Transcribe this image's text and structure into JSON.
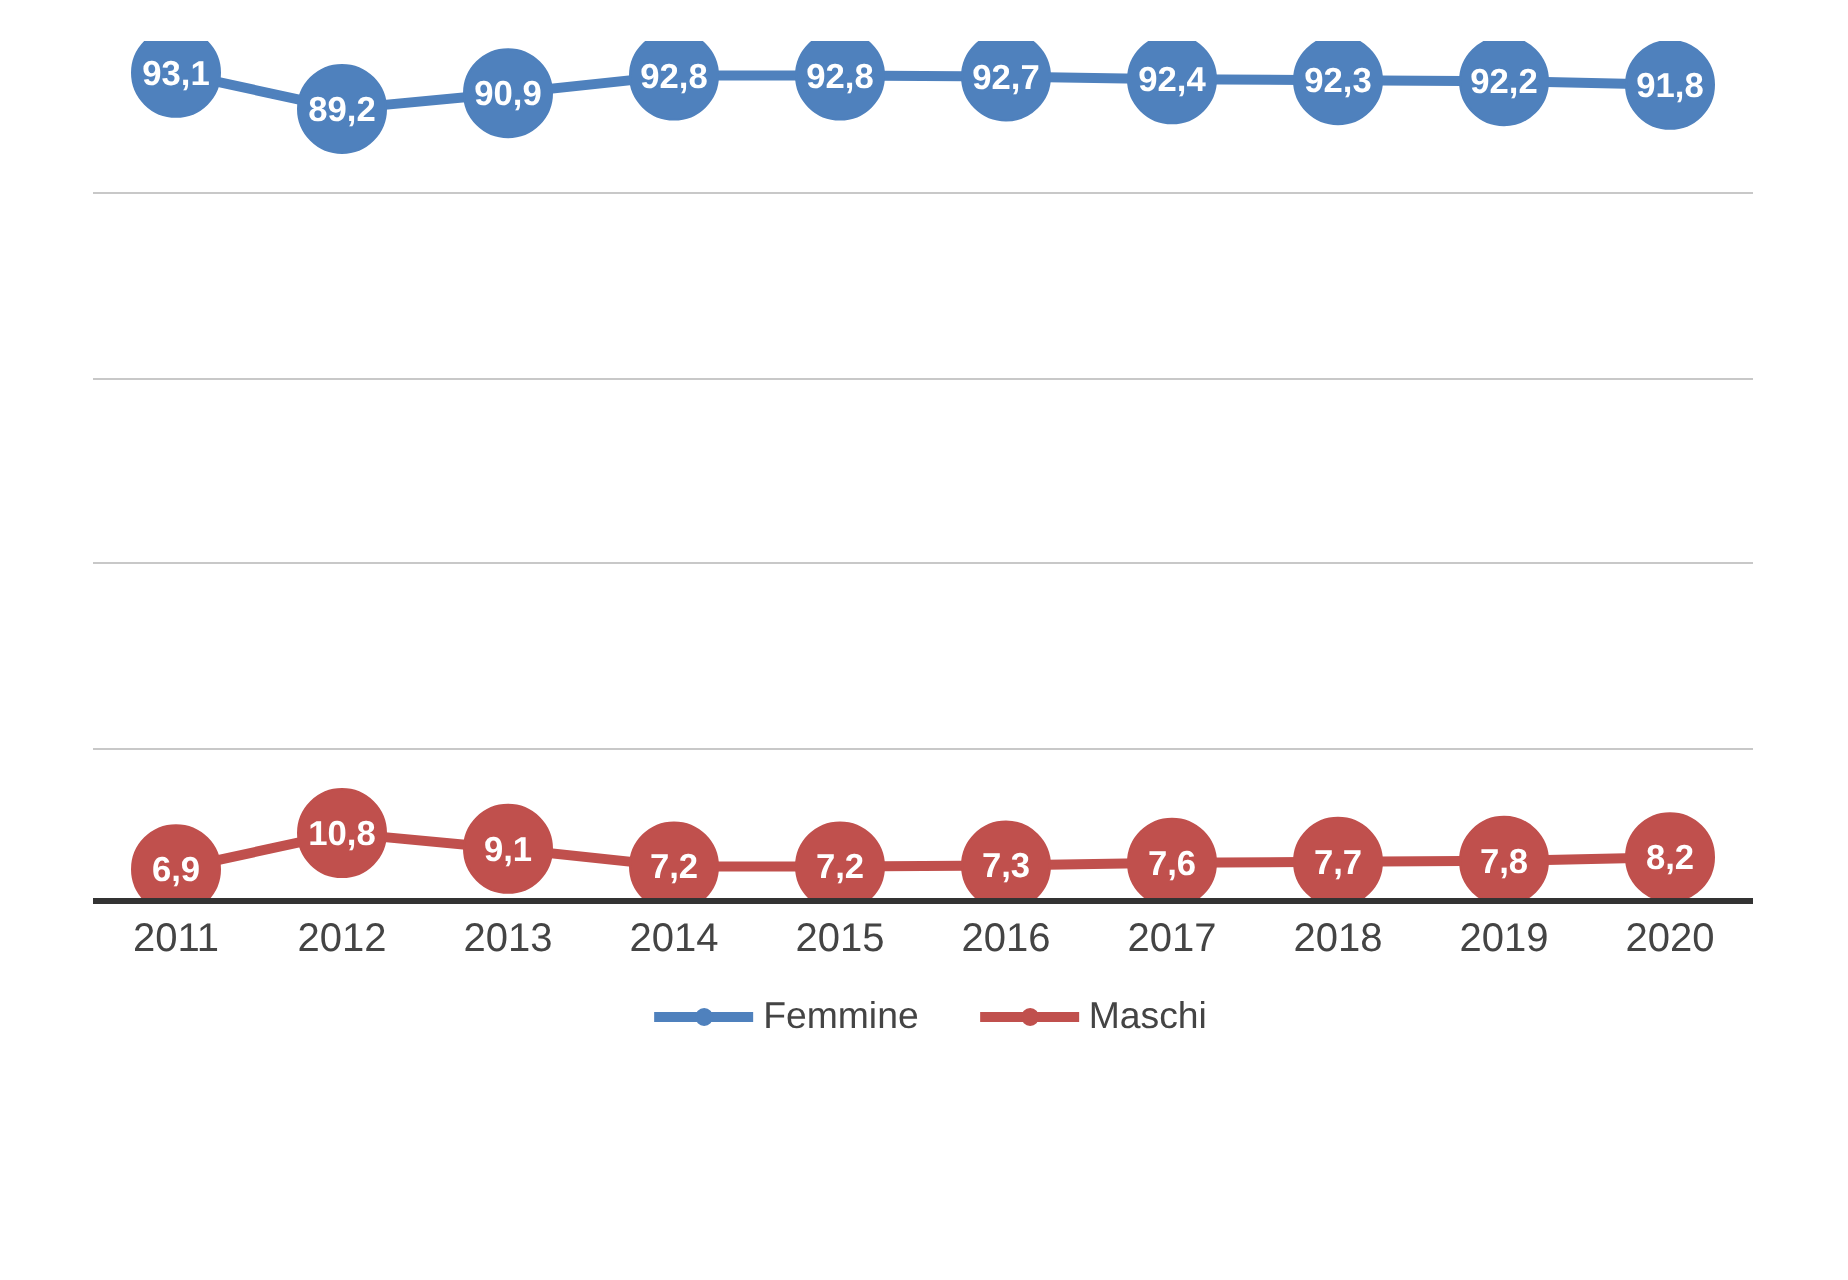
{
  "chart_data": {
    "type": "line",
    "categories": [
      "2011",
      "2012",
      "2013",
      "2014",
      "2015",
      "2016",
      "2017",
      "2018",
      "2019",
      "2020"
    ],
    "series": [
      {
        "name": "Femmine",
        "color": "#4f81bd",
        "values": [
          93.1,
          89.2,
          90.9,
          92.8,
          92.8,
          92.7,
          92.4,
          92.3,
          92.2,
          91.8
        ],
        "value_labels": [
          "93,1",
          "89,2",
          "90,9",
          "92,8",
          "92,8",
          "92,7",
          "92,4",
          "92,3",
          "92,2",
          "91,8"
        ]
      },
      {
        "name": "Maschi",
        "color": "#c0504d",
        "values": [
          6.9,
          10.8,
          9.1,
          7.2,
          7.2,
          7.3,
          7.6,
          7.7,
          7.8,
          8.2
        ],
        "value_labels": [
          "6,9",
          "10,8",
          "9,1",
          "7,2",
          "7,2",
          "7,3",
          "7,6",
          "7,7",
          "7,8",
          "8,2"
        ]
      }
    ],
    "tick_labels": "x",
    "grid": "y",
    "legend": "bottom",
    "marker": "circle",
    "line_style": "solid"
  }
}
